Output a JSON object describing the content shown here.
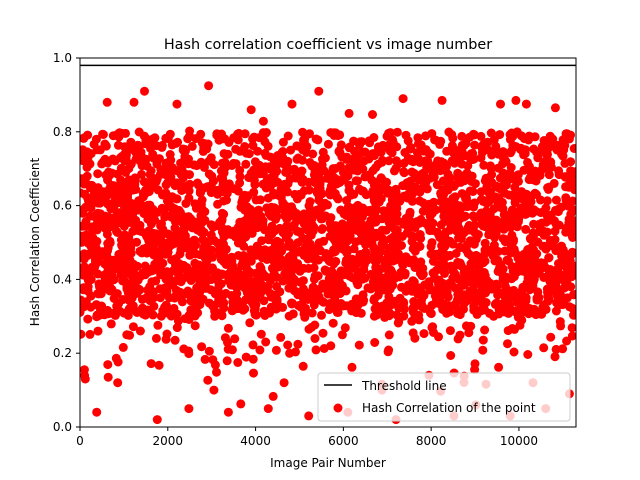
{
  "chart_data": {
    "type": "scatter",
    "title": "Hash correlation coefficient vs image number",
    "xlabel": "Image Pair Number",
    "ylabel": "Hash Correlation Coefficient",
    "xlim": [
      0,
      11300
    ],
    "ylim": [
      0.0,
      1.0
    ],
    "xticks": [
      0,
      2000,
      4000,
      6000,
      8000,
      10000
    ],
    "xtick_labels": [
      "0",
      "2000",
      "4000",
      "6000",
      "8000",
      "10000"
    ],
    "yticks": [
      0.0,
      0.2,
      0.4,
      0.6,
      0.8,
      1.0
    ],
    "ytick_labels": [
      "0.0",
      "0.2",
      "0.4",
      "0.6",
      "0.8",
      "1.0"
    ],
    "grid": false,
    "legend_position": "lower-right",
    "threshold": {
      "name": "Threshold line",
      "y": 0.98,
      "color": "#000000"
    },
    "series": [
      {
        "name": "Hash Correlation of the point",
        "color": "#ff0000",
        "n_points": 11300,
        "x_range": [
          0,
          11300
        ],
        "y_core_range": [
          0.3,
          0.8
        ],
        "y_range": [
          0.0,
          0.93
        ],
        "sample_points": [
          [
            1470,
            0.91
          ],
          [
            2930,
            0.925
          ],
          [
            5440,
            0.91
          ],
          [
            7360,
            0.89
          ],
          [
            8250,
            0.885
          ],
          [
            9930,
            0.885
          ],
          [
            10170,
            0.875
          ],
          [
            10830,
            0.865
          ],
          [
            620,
            0.88
          ],
          [
            4830,
            0.875
          ],
          [
            1230,
            0.88
          ],
          [
            2210,
            0.875
          ],
          [
            3900,
            0.86
          ],
          [
            9580,
            0.875
          ],
          [
            6130,
            0.85
          ],
          [
            120,
            0.13
          ],
          [
            860,
            0.12
          ],
          [
            1760,
            0.02
          ],
          [
            2480,
            0.05
          ],
          [
            3380,
            0.04
          ],
          [
            4290,
            0.05
          ],
          [
            5210,
            0.03
          ],
          [
            6100,
            0.04
          ],
          [
            7200,
            0.02
          ],
          [
            8520,
            0.03
          ],
          [
            9020,
            0.06
          ],
          [
            9800,
            0.03
          ],
          [
            10610,
            0.05
          ],
          [
            11150,
            0.09
          ],
          [
            380,
            0.04
          ],
          [
            3050,
            0.1
          ],
          [
            4650,
            0.12
          ],
          [
            6880,
            0.1
          ],
          [
            7950,
            0.14
          ],
          [
            10320,
            0.12
          ]
        ]
      }
    ]
  }
}
